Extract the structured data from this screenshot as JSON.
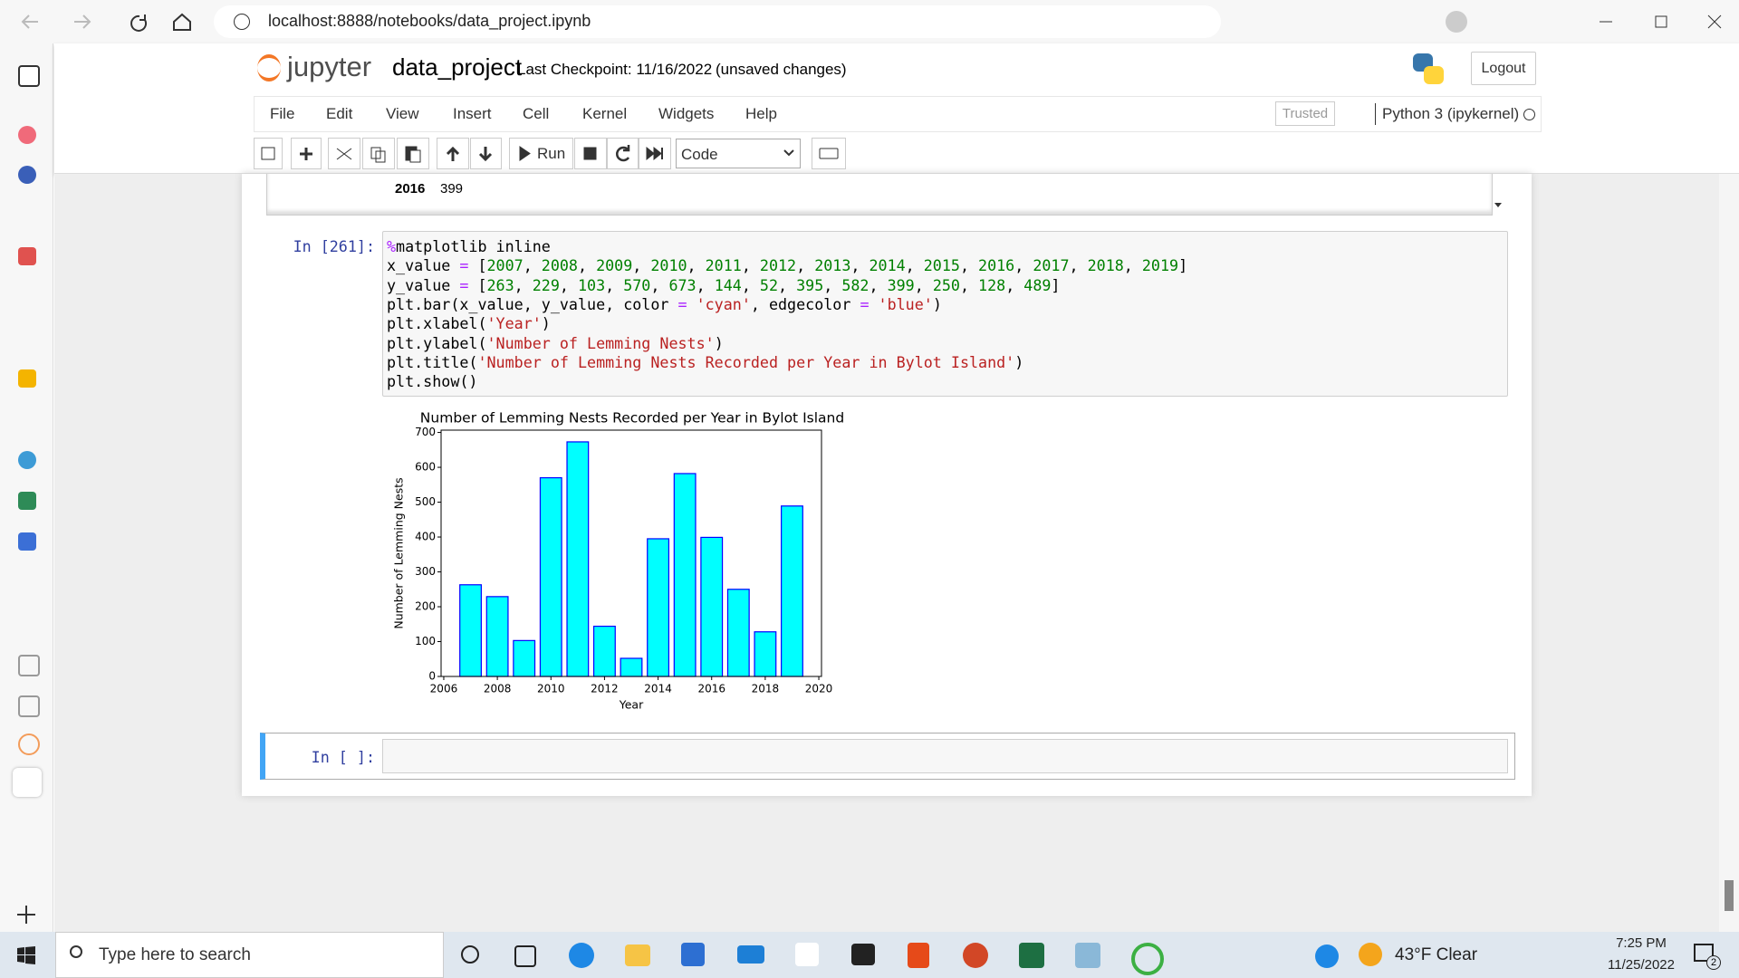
{
  "browser": {
    "url": "localhost:8888/notebooks/data_project.ipynb"
  },
  "header": {
    "logo": "jupyter",
    "notebook_name": "data_project",
    "checkpoint": "Last Checkpoint: 11/16/2022",
    "status": "(unsaved changes)",
    "logout": "Logout"
  },
  "menu": [
    "File",
    "Edit",
    "View",
    "Insert",
    "Cell",
    "Kernel",
    "Widgets",
    "Help"
  ],
  "trusted": "Trusted",
  "kernel": "Python 3 (ipykernel)",
  "toolbar": {
    "run": "Run",
    "cell_type": "Code"
  },
  "output_table": {
    "rows": [
      [
        2016,
        399
      ]
    ]
  },
  "cells": [
    {
      "prompt": "In [261]:",
      "code": [
        "%matplotlib inline",
        "x_value = [2007, 2008, 2009, 2010, 2011, 2012, 2013, 2014, 2015, 2016, 2017, 2018, 2019]",
        "y_value = [263, 229, 103, 570, 673, 144, 52, 395, 582, 399, 250, 128, 489]",
        "plt.bar(x_value, y_value, color = 'cyan', edgecolor = 'blue')",
        "plt.xlabel('Year')",
        "plt.ylabel('Number of Lemming Nests')",
        "plt.title('Number of Lemming Nests Recorded per Year in Bylot Island')",
        "plt.show()"
      ]
    },
    {
      "prompt": "In [ ]:"
    }
  ],
  "chart_data": {
    "type": "bar",
    "title": "Number of Lemming Nests Recorded per Year in Bylot Island",
    "x_label": "Year",
    "y_label": "Number of Lemming Nests",
    "x": [
      2007,
      2008,
      2009,
      2010,
      2011,
      2012,
      2013,
      2014,
      2015,
      2016,
      2017,
      2018,
      2019
    ],
    "values": [
      263,
      229,
      103,
      570,
      673,
      144,
      52,
      395,
      582,
      399,
      250,
      128,
      489
    ],
    "color": "cyan",
    "edgecolor": "blue",
    "bar_width": 0.8,
    "xlim": [
      2005.9,
      2020.1
    ],
    "xticks": [
      2006,
      2008,
      2010,
      2012,
      2014,
      2016,
      2018,
      2020
    ],
    "ylim": [
      0,
      706.65
    ],
    "yticks": [
      0,
      100,
      200,
      300,
      400,
      500,
      600,
      700
    ]
  },
  "taskbar": {
    "search": "Type here to search",
    "weather": "43°F Clear",
    "time": "7:25 PM",
    "date": "11/25/2022",
    "notifications": 2
  }
}
